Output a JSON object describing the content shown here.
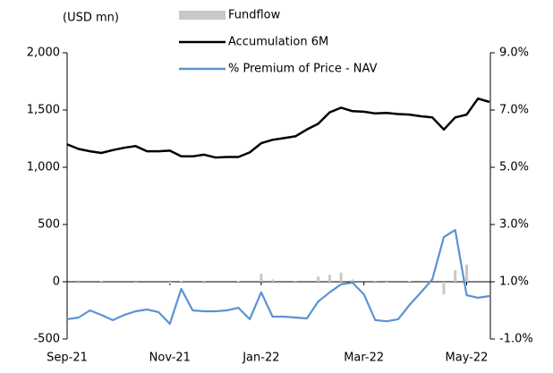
{
  "chart_data": {
    "type": "bar",
    "y_unit_label": "(USD mn)",
    "categories": [
      "Sep-21",
      null,
      null,
      null,
      null,
      null,
      null,
      null,
      null,
      "Nov-21",
      null,
      null,
      null,
      null,
      null,
      null,
      null,
      "Jan-22",
      null,
      null,
      null,
      null,
      null,
      null,
      null,
      null,
      "Mar-22",
      null,
      null,
      null,
      null,
      null,
      null,
      null,
      null,
      "May-22",
      null,
      null
    ],
    "series": [
      {
        "name": "Fundflow",
        "type": "bar",
        "axis": "y",
        "color": "#c8c8c8",
        "values": [
          0,
          -15,
          0,
          5,
          0,
          0,
          -10,
          0,
          0,
          -20,
          5,
          0,
          10,
          0,
          0,
          5,
          0,
          70,
          20,
          0,
          10,
          0,
          45,
          60,
          80,
          20,
          0,
          10,
          -10,
          0,
          5,
          0,
          0,
          -110,
          100,
          150,
          0,
          0
        ]
      },
      {
        "name": "Accumulation 6M",
        "type": "line",
        "axis": "y",
        "color": "#000000",
        "values": [
          1200,
          1160,
          1140,
          1125,
          1150,
          1170,
          1185,
          1140,
          1140,
          1145,
          1095,
          1095,
          1110,
          1085,
          1090,
          1090,
          1130,
          1210,
          1240,
          1255,
          1270,
          1330,
          1380,
          1480,
          1520,
          1490,
          1485,
          1470,
          1475,
          1465,
          1460,
          1445,
          1435,
          1330,
          1435,
          1460,
          1600,
          1570
        ]
      },
      {
        "name": "% Premium of  Price - NAV",
        "type": "line",
        "axis": "y2",
        "color": "#5b93d3",
        "values": [
          -0.31,
          -0.25,
          0.0,
          -0.16,
          -0.34,
          -0.16,
          -0.03,
          0.03,
          -0.06,
          -0.47,
          0.75,
          0.0,
          -0.03,
          -0.03,
          0.0,
          0.09,
          -0.31,
          0.63,
          -0.22,
          -0.22,
          -0.25,
          -0.28,
          0.31,
          0.63,
          0.91,
          0.97,
          0.56,
          -0.34,
          -0.38,
          -0.31,
          0.19,
          0.63,
          1.09,
          2.56,
          2.81,
          0.53,
          0.44,
          0.5
        ]
      }
    ],
    "ylim": [
      -500,
      2000
    ],
    "yticks": [
      -500,
      0,
      500,
      {
        "value": 1000,
        "label": "1,000"
      },
      {
        "value": 1500,
        "label": "1,500"
      },
      {
        "value": 2000,
        "label": "2,000"
      }
    ],
    "y2lim": [
      -1,
      9
    ],
    "y2ticks": [
      {
        "value": -1,
        "label": "-1.0%"
      },
      {
        "value": 1,
        "label": "1.0%"
      },
      {
        "value": 3,
        "label": "3.0%"
      },
      {
        "value": 5,
        "label": "5.0%"
      },
      {
        "value": 7,
        "label": "7.0%"
      },
      {
        "value": 9,
        "label": "9.0%"
      }
    ]
  }
}
